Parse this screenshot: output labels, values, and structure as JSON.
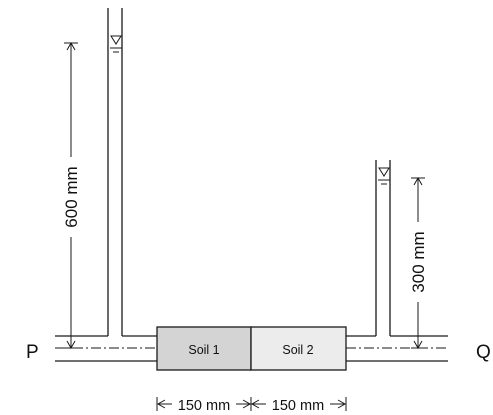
{
  "diagram": {
    "end_labels": {
      "left": "P",
      "right": "Q"
    },
    "soils": [
      {
        "label": "Soil 1",
        "fill": "#d4d4d4"
      },
      {
        "label": "Soil 2",
        "fill": "#ececec"
      }
    ],
    "dimensions": {
      "left_head": "600 mm",
      "right_head": "300 mm",
      "soil1_length": "150 mm",
      "soil2_length": "150 mm"
    },
    "colors": {
      "line": "#1a1a1a",
      "background": "#ffffff"
    },
    "icons": [
      "water-level-icon",
      "water-level-icon"
    ]
  }
}
